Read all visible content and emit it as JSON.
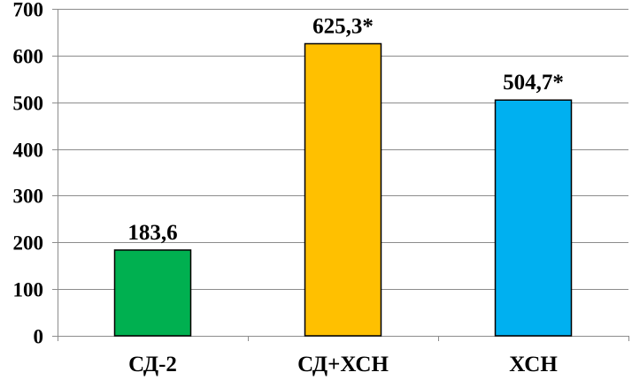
{
  "chart_data": {
    "type": "bar",
    "title": "",
    "xlabel": "",
    "ylabel": "",
    "categories": [
      "СД-2",
      "СД+ХСН",
      "ХСН"
    ],
    "values": [
      183.6,
      625.3,
      504.7
    ],
    "data_labels": [
      "183,6",
      "625,3*",
      "504,7*"
    ],
    "colors": [
      "#00b050",
      "#ffc000",
      "#00b0f0"
    ],
    "ylim": [
      0,
      700
    ],
    "yticks": [
      0,
      100,
      200,
      300,
      400,
      500,
      600,
      700
    ],
    "ytick_labels": [
      "0",
      "100",
      "200",
      "300",
      "400",
      "500",
      "600",
      "700"
    ],
    "grid": true,
    "legend": "none"
  }
}
